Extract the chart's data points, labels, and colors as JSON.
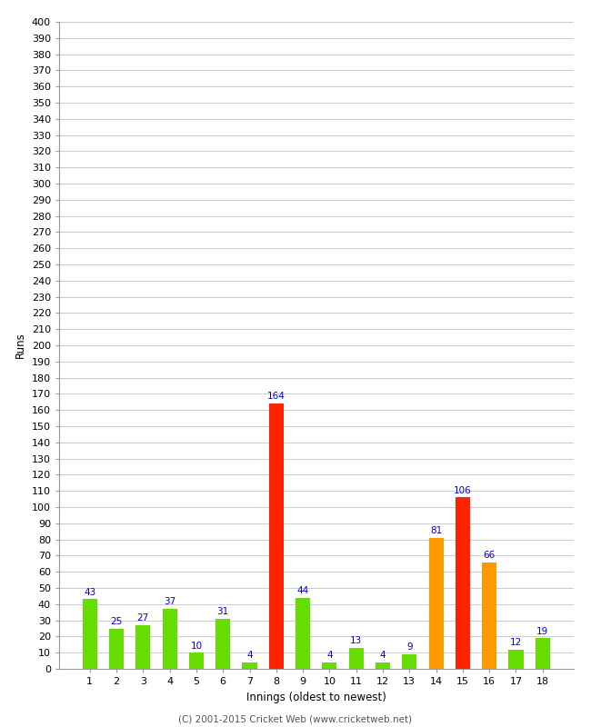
{
  "xlabel": "Innings (oldest to newest)",
  "ylabel": "Runs",
  "categories": [
    1,
    2,
    3,
    4,
    5,
    6,
    7,
    8,
    9,
    10,
    11,
    12,
    13,
    14,
    15,
    16,
    17,
    18
  ],
  "values": [
    43,
    25,
    27,
    37,
    10,
    31,
    4,
    164,
    44,
    4,
    13,
    4,
    9,
    81,
    106,
    66,
    12,
    19
  ],
  "colors": [
    "#66dd00",
    "#66dd00",
    "#66dd00",
    "#66dd00",
    "#66dd00",
    "#66dd00",
    "#66dd00",
    "#ff2200",
    "#66dd00",
    "#66dd00",
    "#66dd00",
    "#66dd00",
    "#66dd00",
    "#ff9900",
    "#ff2200",
    "#ff9900",
    "#66dd00",
    "#66dd00"
  ],
  "ylim": [
    0,
    400
  ],
  "ytick_step": 10,
  "background_color": "#ffffff",
  "grid_color": "#cccccc",
  "label_color": "#0000cc",
  "footer": "(C) 2001-2015 Cricket Web (www.cricketweb.net)",
  "bar_width": 0.55,
  "figwidth": 6.5,
  "figheight": 8.0,
  "dpi": 100
}
